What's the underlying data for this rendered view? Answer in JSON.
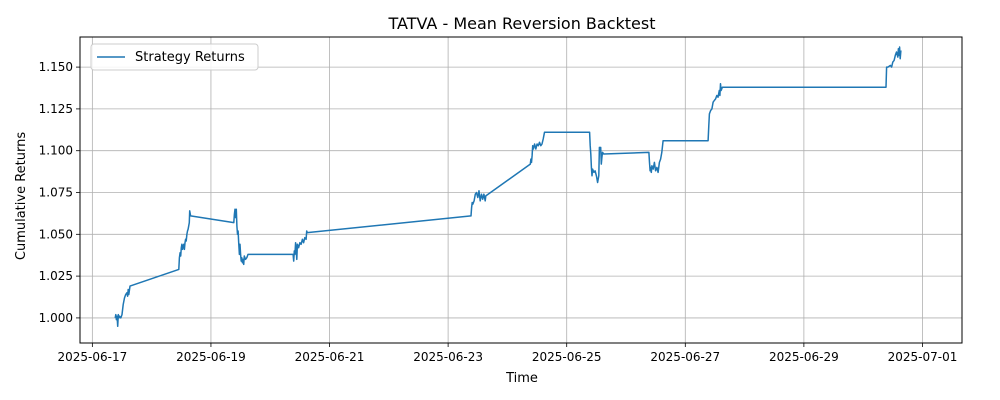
{
  "chart_data": {
    "type": "line",
    "title": "TATVA - Mean Reversion Backtest",
    "xlabel": "Time",
    "ylabel": "Cumulative Returns",
    "grid": true,
    "legend_position": "top-left",
    "xlim": [
      "2025-06-16T19:00",
      "2025-07-01T16:00"
    ],
    "ylim": [
      0.985,
      1.168
    ],
    "x_ticks": [
      "2025-06-17",
      "2025-06-19",
      "2025-06-21",
      "2025-06-23",
      "2025-06-25",
      "2025-06-27",
      "2025-06-29",
      "2025-07-01"
    ],
    "y_ticks": [
      "1.000",
      "1.025",
      "1.050",
      "1.075",
      "1.100",
      "1.125",
      "1.150"
    ],
    "series": [
      {
        "name": "Strategy Returns",
        "color": "#1f77b4",
        "points": [
          [
            "2025-06-17T09:15",
            1.0
          ],
          [
            "2025-06-17T09:30",
            1.002
          ],
          [
            "2025-06-17T09:45",
            0.999
          ],
          [
            "2025-06-17T10:00",
            1.001
          ],
          [
            "2025-06-17T10:15",
            0.995
          ],
          [
            "2025-06-17T10:30",
            1.002
          ],
          [
            "2025-06-17T10:45",
            1.0
          ],
          [
            "2025-06-17T11:00",
            1.001
          ],
          [
            "2025-06-17T11:30",
            1.0
          ],
          [
            "2025-06-17T12:00",
            1.002
          ],
          [
            "2025-06-17T12:30",
            1.008
          ],
          [
            "2025-06-17T13:00",
            1.012
          ],
          [
            "2025-06-17T13:30",
            1.014
          ],
          [
            "2025-06-17T14:00",
            1.015
          ],
          [
            "2025-06-17T14:15",
            1.013
          ],
          [
            "2025-06-17T14:30",
            1.017
          ],
          [
            "2025-06-17T14:45",
            1.014
          ],
          [
            "2025-06-17T15:15",
            1.019
          ],
          [
            "2025-06-18T11:00",
            1.029
          ],
          [
            "2025-06-18T11:15",
            1.036
          ],
          [
            "2025-06-18T11:30",
            1.039
          ],
          [
            "2025-06-18T11:45",
            1.037
          ],
          [
            "2025-06-18T12:00",
            1.042
          ],
          [
            "2025-06-18T12:15",
            1.044
          ],
          [
            "2025-06-18T12:30",
            1.041
          ],
          [
            "2025-06-18T12:45",
            1.043
          ],
          [
            "2025-06-18T13:00",
            1.044
          ],
          [
            "2025-06-18T13:15",
            1.041
          ],
          [
            "2025-06-18T13:30",
            1.045
          ],
          [
            "2025-06-18T13:45",
            1.047
          ],
          [
            "2025-06-18T14:00",
            1.046
          ],
          [
            "2025-06-18T14:15",
            1.05
          ],
          [
            "2025-06-18T14:30",
            1.052
          ],
          [
            "2025-06-18T14:45",
            1.053
          ],
          [
            "2025-06-18T15:00",
            1.055
          ],
          [
            "2025-06-18T15:15",
            1.057
          ],
          [
            "2025-06-18T15:25",
            1.064
          ],
          [
            "2025-06-18T15:45",
            1.061
          ],
          [
            "2025-06-19T09:15",
            1.057
          ],
          [
            "2025-06-19T09:30",
            1.062
          ],
          [
            "2025-06-19T09:45",
            1.065
          ],
          [
            "2025-06-19T10:00",
            1.06
          ],
          [
            "2025-06-19T10:15",
            1.065
          ],
          [
            "2025-06-19T10:30",
            1.055
          ],
          [
            "2025-06-19T10:45",
            1.05
          ],
          [
            "2025-06-19T11:00",
            1.052
          ],
          [
            "2025-06-19T11:15",
            1.045
          ],
          [
            "2025-06-19T11:30",
            1.038
          ],
          [
            "2025-06-19T11:45",
            1.044
          ],
          [
            "2025-06-19T12:00",
            1.038
          ],
          [
            "2025-06-19T12:15",
            1.034
          ],
          [
            "2025-06-19T12:30",
            1.036
          ],
          [
            "2025-06-19T12:45",
            1.033
          ],
          [
            "2025-06-19T13:00",
            1.035
          ],
          [
            "2025-06-19T13:15",
            1.032
          ],
          [
            "2025-06-19T13:30",
            1.037
          ],
          [
            "2025-06-19T14:00",
            1.035
          ],
          [
            "2025-06-19T14:30",
            1.036
          ],
          [
            "2025-06-19T15:00",
            1.038
          ],
          [
            "2025-06-20T09:15",
            1.038
          ],
          [
            "2025-06-20T09:30",
            1.034
          ],
          [
            "2025-06-20T09:45",
            1.04
          ],
          [
            "2025-06-20T10:00",
            1.038
          ],
          [
            "2025-06-20T10:15",
            1.045
          ],
          [
            "2025-06-20T10:30",
            1.041
          ],
          [
            "2025-06-20T10:45",
            1.035
          ],
          [
            "2025-06-20T11:00",
            1.044
          ],
          [
            "2025-06-20T11:30",
            1.042
          ],
          [
            "2025-06-20T12:00",
            1.045
          ],
          [
            "2025-06-20T12:30",
            1.044
          ],
          [
            "2025-06-20T13:00",
            1.047
          ],
          [
            "2025-06-20T13:30",
            1.045
          ],
          [
            "2025-06-20T14:00",
            1.048
          ],
          [
            "2025-06-20T14:30",
            1.047
          ],
          [
            "2025-06-20T14:45",
            1.052
          ],
          [
            "2025-06-20T15:00",
            1.051
          ],
          [
            "2025-06-23T09:15",
            1.061
          ],
          [
            "2025-06-23T09:30",
            1.066
          ],
          [
            "2025-06-23T09:45",
            1.069
          ],
          [
            "2025-06-23T10:00",
            1.068
          ],
          [
            "2025-06-23T10:30",
            1.07
          ],
          [
            "2025-06-23T11:00",
            1.074
          ],
          [
            "2025-06-23T11:30",
            1.075
          ],
          [
            "2025-06-23T12:00",
            1.072
          ],
          [
            "2025-06-23T12:30",
            1.076
          ],
          [
            "2025-06-23T13:00",
            1.07
          ],
          [
            "2025-06-23T13:30",
            1.074
          ],
          [
            "2025-06-23T14:00",
            1.071
          ],
          [
            "2025-06-23T14:30",
            1.074
          ],
          [
            "2025-06-23T15:00",
            1.07
          ],
          [
            "2025-06-23T15:15",
            1.073
          ],
          [
            "2025-06-24T09:15",
            1.092
          ],
          [
            "2025-06-24T09:30",
            1.095
          ],
          [
            "2025-06-24T09:45",
            1.093
          ],
          [
            "2025-06-24T10:00",
            1.097
          ],
          [
            "2025-06-24T10:15",
            1.103
          ],
          [
            "2025-06-24T10:30",
            1.101
          ],
          [
            "2025-06-24T11:00",
            1.104
          ],
          [
            "2025-06-24T11:30",
            1.101
          ],
          [
            "2025-06-24T12:00",
            1.104
          ],
          [
            "2025-06-24T12:30",
            1.103
          ],
          [
            "2025-06-24T13:00",
            1.105
          ],
          [
            "2025-06-24T13:30",
            1.103
          ],
          [
            "2025-06-24T14:00",
            1.104
          ],
          [
            "2025-06-24T14:30",
            1.107
          ],
          [
            "2025-06-24T15:00",
            1.111
          ],
          [
            "2025-06-25T09:15",
            1.111
          ],
          [
            "2025-06-25T09:30",
            1.103
          ],
          [
            "2025-06-25T09:45",
            1.098
          ],
          [
            "2025-06-25T10:00",
            1.09
          ],
          [
            "2025-06-25T10:15",
            1.085
          ],
          [
            "2025-06-25T10:30",
            1.089
          ],
          [
            "2025-06-25T11:00",
            1.087
          ],
          [
            "2025-06-25T11:30",
            1.088
          ],
          [
            "2025-06-25T12:00",
            1.085
          ],
          [
            "2025-06-25T12:30",
            1.081
          ],
          [
            "2025-06-25T13:00",
            1.085
          ],
          [
            "2025-06-25T13:15",
            1.102
          ],
          [
            "2025-06-25T13:30",
            1.1
          ],
          [
            "2025-06-25T13:45",
            1.102
          ],
          [
            "2025-06-25T14:00",
            1.092
          ],
          [
            "2025-06-25T14:15",
            1.096
          ],
          [
            "2025-06-25T14:30",
            1.099
          ],
          [
            "2025-06-25T15:00",
            1.098
          ],
          [
            "2025-06-26T09:15",
            1.099
          ],
          [
            "2025-06-26T09:30",
            1.093
          ],
          [
            "2025-06-26T09:45",
            1.088
          ],
          [
            "2025-06-26T10:00",
            1.09
          ],
          [
            "2025-06-26T10:15",
            1.087
          ],
          [
            "2025-06-26T10:30",
            1.091
          ],
          [
            "2025-06-26T11:00",
            1.089
          ],
          [
            "2025-06-26T11:30",
            1.093
          ],
          [
            "2025-06-26T12:00",
            1.088
          ],
          [
            "2025-06-26T12:30",
            1.09
          ],
          [
            "2025-06-26T13:00",
            1.087
          ],
          [
            "2025-06-26T13:30",
            1.093
          ],
          [
            "2025-06-26T14:00",
            1.095
          ],
          [
            "2025-06-26T14:30",
            1.099
          ],
          [
            "2025-06-26T15:00",
            1.106
          ],
          [
            "2025-06-27T09:15",
            1.106
          ],
          [
            "2025-06-27T09:30",
            1.115
          ],
          [
            "2025-06-27T09:45",
            1.122
          ],
          [
            "2025-06-27T10:15",
            1.124
          ],
          [
            "2025-06-27T10:45",
            1.125
          ],
          [
            "2025-06-27T11:15",
            1.129
          ],
          [
            "2025-06-27T11:45",
            1.13
          ],
          [
            "2025-06-27T12:15",
            1.131
          ],
          [
            "2025-06-27T12:45",
            1.133
          ],
          [
            "2025-06-27T13:15",
            1.132
          ],
          [
            "2025-06-27T13:45",
            1.136
          ],
          [
            "2025-06-27T14:00",
            1.133
          ],
          [
            "2025-06-27T14:15",
            1.14
          ],
          [
            "2025-06-27T14:30",
            1.136
          ],
          [
            "2025-06-27T15:00",
            1.138
          ],
          [
            "2025-06-30T09:15",
            1.138
          ],
          [
            "2025-06-30T09:30",
            1.15
          ],
          [
            "2025-06-30T10:00",
            1.15
          ],
          [
            "2025-06-30T11:00",
            1.151
          ],
          [
            "2025-06-30T11:30",
            1.15
          ],
          [
            "2025-06-30T12:00",
            1.153
          ],
          [
            "2025-06-30T12:30",
            1.154
          ],
          [
            "2025-06-30T13:00",
            1.157
          ],
          [
            "2025-06-30T13:30",
            1.159
          ],
          [
            "2025-06-30T14:00",
            1.156
          ],
          [
            "2025-06-30T14:15",
            1.161
          ],
          [
            "2025-06-30T14:30",
            1.157
          ],
          [
            "2025-06-30T14:45",
            1.162
          ],
          [
            "2025-06-30T15:00",
            1.155
          ],
          [
            "2025-06-30T15:15",
            1.16
          ]
        ]
      }
    ]
  }
}
